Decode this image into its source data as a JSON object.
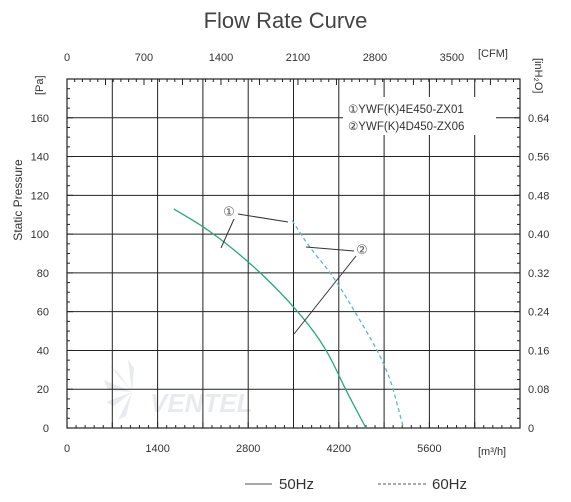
{
  "chart_data": {
    "type": "line",
    "title": "Flow Rate Curve",
    "ylabel": "Static Pressure",
    "grid": true,
    "axes": {
      "x_bottom": {
        "unit": "[m³/h]",
        "range": [
          0,
          7000
        ],
        "ticks": [
          "0",
          "1400",
          "2800",
          "4200",
          "5600"
        ]
      },
      "x_top": {
        "unit": "[CFM]",
        "range": [
          0,
          4119
        ],
        "ticks": [
          "0",
          "700",
          "1400",
          "2100",
          "2800",
          "3500"
        ]
      },
      "y_left": {
        "unit": "[Pa]",
        "range": [
          0,
          180
        ],
        "ticks": [
          "0",
          "20",
          "40",
          "60",
          "80",
          "100",
          "120",
          "140",
          "160"
        ]
      },
      "y_right": {
        "unit": "[inH₂O]",
        "range": [
          0,
          0.72
        ],
        "ticks": [
          "0",
          "0.08",
          "0.16",
          "0.24",
          "0.32",
          "0.40",
          "0.48",
          "0.56",
          "0.64"
        ]
      }
    },
    "series": [
      {
        "name": "50Hz",
        "callout": "①",
        "color": "#2aa87a",
        "dash": "solid",
        "points": [
          [
            1650,
            113
          ],
          [
            2200,
            102
          ],
          [
            2800,
            86
          ],
          [
            3300,
            70
          ],
          [
            3750,
            53
          ],
          [
            4050,
            38
          ],
          [
            4300,
            20
          ],
          [
            4620,
            0
          ]
        ]
      },
      {
        "name": "60Hz",
        "callout": "②",
        "color": "#5bb8d8",
        "dash": "dashed",
        "points": [
          [
            3480,
            107
          ],
          [
            3750,
            93
          ],
          [
            4100,
            79
          ],
          [
            4450,
            60
          ],
          [
            4800,
            40
          ],
          [
            5000,
            25
          ],
          [
            5120,
            10
          ],
          [
            5200,
            0
          ]
        ]
      }
    ],
    "legend": {
      "placement": "top-right",
      "entries": [
        "①YWF(K)4E450-ZX01",
        "②YWF(K)4D450-ZX06"
      ]
    },
    "bottom_legend": [
      {
        "label": "50Hz",
        "style": "solid"
      },
      {
        "label": "60Hz",
        "style": "dashed"
      }
    ]
  },
  "watermark": {
    "text": "VENTEL",
    "note": "logo watermark"
  }
}
